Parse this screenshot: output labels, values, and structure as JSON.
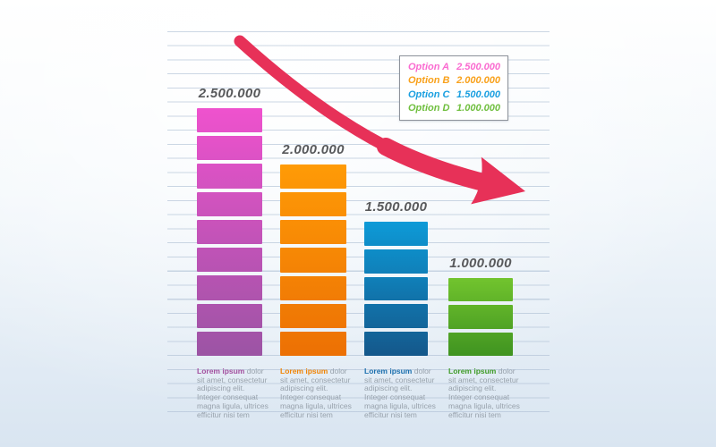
{
  "chart_data": {
    "type": "bar",
    "title": "",
    "xlabel": "",
    "ylabel": "",
    "categories": [
      "Option A",
      "Option B",
      "Option C",
      "Option D"
    ],
    "values": [
      2500000,
      2000000,
      1500000,
      1000000
    ],
    "value_labels": [
      "2.500.000",
      "2.000.000",
      "1.500.000",
      "1.000.000"
    ],
    "segments_per_bar": [
      9,
      7,
      5,
      3
    ],
    "bar_colors": [
      {
        "top": "#ef52ce",
        "bottom": "#9b54a4"
      },
      {
        "top": "#ff9b06",
        "bottom": "#ec7004"
      },
      {
        "top": "#0d9bd8",
        "bottom": "#14578a"
      },
      {
        "top": "#72c42e",
        "bottom": "#3f9320"
      }
    ],
    "trend": "decreasing",
    "legend_position": "top-right",
    "grid": "horizontal-lines"
  },
  "legend": {
    "items": [
      {
        "label": "Option A",
        "value": "2.500.000",
        "color": "#fa6bd0"
      },
      {
        "label": "Option B",
        "value": "2.000.000",
        "color": "#f9a11b"
      },
      {
        "label": "Option C",
        "value": "1.500.000",
        "color": "#1a9fe0"
      },
      {
        "label": "Option D",
        "value": "1.000.000",
        "color": "#70bf3f"
      }
    ]
  },
  "descriptions": [
    {
      "lead": "Lorem ipsum",
      "body": " dolor sit amet, consectetur adipiscing elit. Integer consequat magna ligula, ultrices efficitur nisi tem",
      "lead_color": "#a3509f"
    },
    {
      "lead": "Lorem ipsum",
      "body": " dolor sit amet, consectetur adipiscing elit. Integer consequat magna ligula, ultrices efficitur nisi tem",
      "lead_color": "#f08405"
    },
    {
      "lead": "Lorem ipsum",
      "body": " dolor sit amet, consectetur adipiscing elit. Integer consequat magna ligula, ultrices efficitur nisi tem",
      "lead_color": "#1b6fae"
    },
    {
      "lead": "Lorem ipsum",
      "body": " dolor sit amet, consectetur adipiscing elit. Integer consequat magna ligula, ultrices efficitur nisi tem",
      "lead_color": "#3e9a26"
    }
  ],
  "arrow": {
    "color": "#e73158",
    "direction": "down-right",
    "meaning": "declining trend"
  }
}
